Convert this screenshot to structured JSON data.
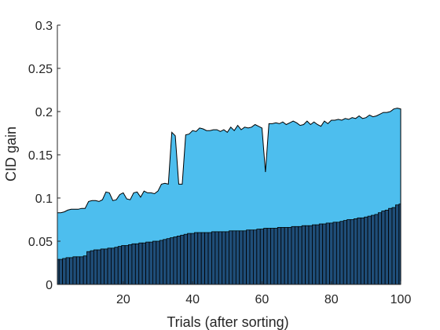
{
  "chart_data": {
    "type": "area",
    "title": "",
    "xlabel": "Trials (after sorting)",
    "ylabel": "CID gain",
    "xlim": [
      1,
      100
    ],
    "ylim": [
      0,
      0.3
    ],
    "xticks": [
      20,
      40,
      60,
      80,
      100
    ],
    "xtick_labels": [
      "20",
      "40",
      "60",
      "80",
      "100"
    ],
    "yticks": [
      0,
      0.05,
      0.1,
      0.15,
      0.2,
      0.25,
      0.3
    ],
    "ytick_labels": [
      "0",
      "0.05",
      "0.1",
      "0.15",
      "0.2",
      "0.25",
      "0.3"
    ],
    "grid": false,
    "legend": "none",
    "colors": {
      "upper_area": "#4DBEEE",
      "bar_fill": "#1F4E79",
      "outline": "#000000",
      "axis": "#262626"
    },
    "series": [
      {
        "kind": "area",
        "x": [
          1,
          2,
          3,
          4,
          5,
          6,
          7,
          8,
          9,
          10,
          11,
          12,
          13,
          14,
          15,
          16,
          17,
          18,
          19,
          20,
          21,
          22,
          23,
          24,
          25,
          26,
          27,
          28,
          29,
          30,
          31,
          32,
          33,
          34,
          35,
          36,
          37,
          38,
          39,
          40,
          41,
          42,
          43,
          44,
          45,
          46,
          47,
          48,
          49,
          50,
          51,
          52,
          53,
          54,
          55,
          56,
          57,
          58,
          59,
          60,
          61,
          62,
          63,
          64,
          65,
          66,
          67,
          68,
          69,
          70,
          71,
          72,
          73,
          74,
          75,
          76,
          77,
          78,
          79,
          80,
          81,
          82,
          83,
          84,
          85,
          86,
          87,
          88,
          89,
          90,
          91,
          92,
          93,
          94,
          95,
          96,
          97,
          98,
          99,
          100
        ],
        "values": [
          0.083,
          0.083,
          0.084,
          0.086,
          0.087,
          0.087,
          0.087,
          0.088,
          0.088,
          0.096,
          0.097,
          0.097,
          0.096,
          0.098,
          0.107,
          0.106,
          0.097,
          0.098,
          0.104,
          0.106,
          0.099,
          0.098,
          0.106,
          0.107,
          0.101,
          0.108,
          0.106,
          0.106,
          0.105,
          0.108,
          0.116,
          0.117,
          0.116,
          0.176,
          0.172,
          0.116,
          0.116,
          0.173,
          0.174,
          0.178,
          0.177,
          0.181,
          0.18,
          0.178,
          0.178,
          0.179,
          0.179,
          0.177,
          0.179,
          0.176,
          0.182,
          0.178,
          0.184,
          0.179,
          0.182,
          0.181,
          0.182,
          0.185,
          0.183,
          0.181,
          0.13,
          0.186,
          0.186,
          0.187,
          0.186,
          0.188,
          0.185,
          0.187,
          0.189,
          0.187,
          0.184,
          0.185,
          0.189,
          0.185,
          0.188,
          0.185,
          0.183,
          0.189,
          0.186,
          0.19,
          0.19,
          0.191,
          0.19,
          0.192,
          0.191,
          0.193,
          0.192,
          0.195,
          0.192,
          0.193,
          0.196,
          0.194,
          0.195,
          0.197,
          0.199,
          0.199,
          0.2,
          0.203,
          0.204,
          0.203
        ]
      },
      {
        "kind": "bar",
        "x": [
          1,
          2,
          3,
          4,
          5,
          6,
          7,
          8,
          9,
          10,
          11,
          12,
          13,
          14,
          15,
          16,
          17,
          18,
          19,
          20,
          21,
          22,
          23,
          24,
          25,
          26,
          27,
          28,
          29,
          30,
          31,
          32,
          33,
          34,
          35,
          36,
          37,
          38,
          39,
          40,
          41,
          42,
          43,
          44,
          45,
          46,
          47,
          48,
          49,
          50,
          51,
          52,
          53,
          54,
          55,
          56,
          57,
          58,
          59,
          60,
          61,
          62,
          63,
          64,
          65,
          66,
          67,
          68,
          69,
          70,
          71,
          72,
          73,
          74,
          75,
          76,
          77,
          78,
          79,
          80,
          81,
          82,
          83,
          84,
          85,
          86,
          87,
          88,
          89,
          90,
          91,
          92,
          93,
          94,
          95,
          96,
          97,
          98,
          99,
          100
        ],
        "values": [
          0.029,
          0.029,
          0.03,
          0.031,
          0.031,
          0.032,
          0.032,
          0.032,
          0.033,
          0.038,
          0.039,
          0.04,
          0.04,
          0.041,
          0.041,
          0.042,
          0.042,
          0.043,
          0.044,
          0.045,
          0.045,
          0.046,
          0.047,
          0.047,
          0.048,
          0.048,
          0.049,
          0.049,
          0.05,
          0.05,
          0.051,
          0.052,
          0.053,
          0.054,
          0.055,
          0.056,
          0.057,
          0.058,
          0.059,
          0.059,
          0.06,
          0.06,
          0.06,
          0.06,
          0.06,
          0.061,
          0.061,
          0.061,
          0.061,
          0.061,
          0.062,
          0.062,
          0.062,
          0.062,
          0.062,
          0.063,
          0.063,
          0.063,
          0.064,
          0.064,
          0.065,
          0.065,
          0.065,
          0.065,
          0.066,
          0.066,
          0.066,
          0.066,
          0.067,
          0.067,
          0.067,
          0.068,
          0.068,
          0.068,
          0.069,
          0.069,
          0.07,
          0.07,
          0.071,
          0.071,
          0.072,
          0.072,
          0.073,
          0.074,
          0.075,
          0.075,
          0.076,
          0.077,
          0.077,
          0.078,
          0.079,
          0.08,
          0.081,
          0.083,
          0.085,
          0.086,
          0.088,
          0.089,
          0.092,
          0.093
        ]
      }
    ]
  }
}
